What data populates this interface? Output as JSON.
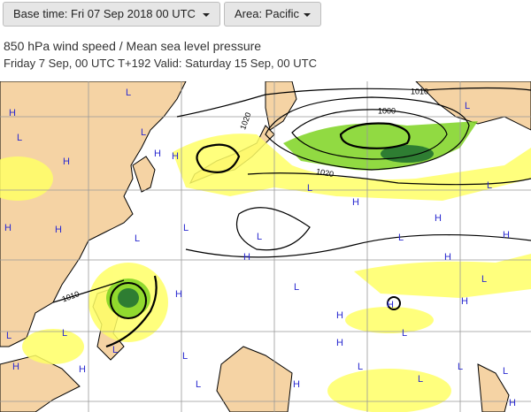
{
  "controls": {
    "base_time": "Base time: Fri 07 Sep 2018 00 UTC",
    "area": "Area: Pacific"
  },
  "header": {
    "title": "850 hPa wind speed / Mean sea level pressure",
    "subtitle": "Friday 7 Sep, 00 UTC T+192 Valid: Saturday 15 Sep, 00 UTC"
  },
  "map": {
    "isobar_labels": [
      "1010",
      "1000",
      "1020",
      "1020",
      "1010"
    ],
    "pressure_centers": [
      "L",
      "H",
      "L",
      "H",
      "L",
      "H",
      "H",
      "H",
      "L",
      "H",
      "L",
      "H",
      "L",
      "H",
      "L",
      "H",
      "H",
      "L",
      "L",
      "L",
      "H",
      "L",
      "L",
      "H",
      "H",
      "H",
      "L",
      "L",
      "L",
      "H",
      "H",
      "L",
      "L",
      "L",
      "H",
      "H",
      "L",
      "L",
      "L",
      "L",
      "H",
      "H"
    ]
  }
}
